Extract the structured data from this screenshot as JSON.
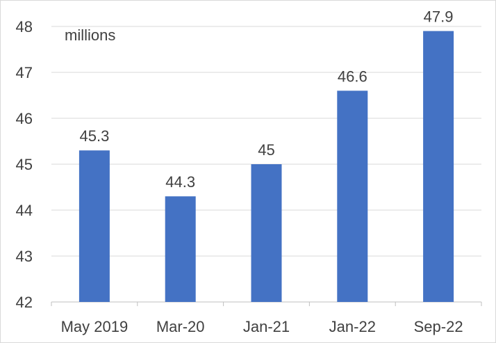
{
  "chart_data": {
    "type": "bar",
    "categories": [
      "May 2019",
      "Mar-20",
      "Jan-21",
      "Jan-22",
      "Sep-22"
    ],
    "values": [
      45.3,
      44.3,
      45,
      46.6,
      47.9
    ],
    "data_labels": [
      "45.3",
      "44.3",
      "45",
      "46.6",
      "47.9"
    ],
    "unit_label": "millions",
    "ylim": [
      42,
      48
    ],
    "yticks": [
      42,
      43,
      44,
      45,
      46,
      47,
      48
    ],
    "grid": true,
    "legend": "none",
    "colors": {
      "bar": "#4472c4"
    }
  }
}
